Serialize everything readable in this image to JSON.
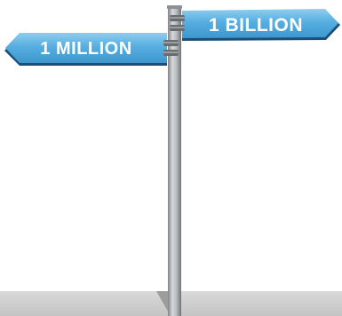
{
  "signs": {
    "right": {
      "label": "1 BILLION",
      "direction": "right"
    },
    "left": {
      "label": "1 MILLION",
      "direction": "left"
    }
  },
  "colors": {
    "sign_fill": "#56aee0",
    "sign_top_highlight": "#8fcdf0",
    "sign_edge": "#1b4f7a",
    "pole": "#a9acb0",
    "ground": "#cfcfcf"
  },
  "icons": {
    "post": "signpost-icon"
  }
}
